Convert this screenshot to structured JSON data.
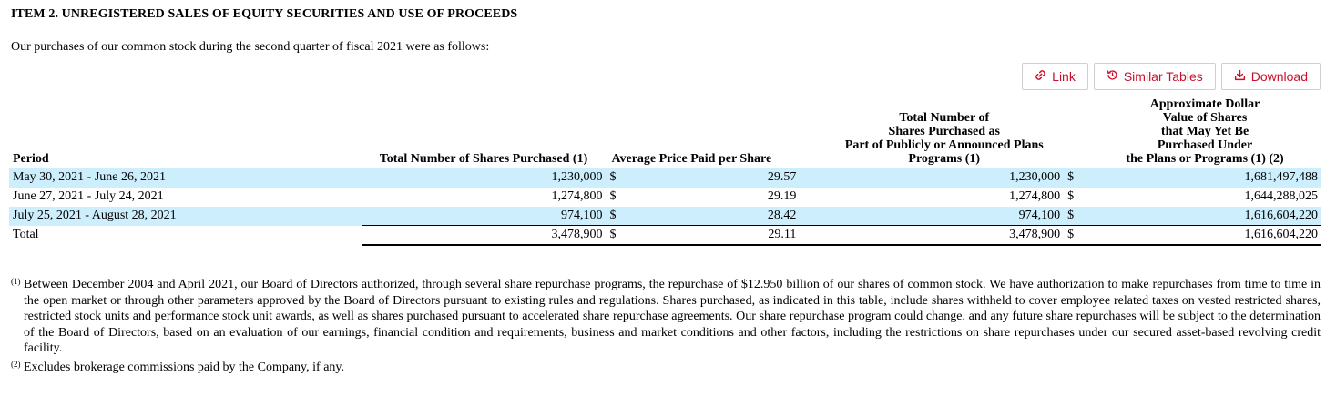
{
  "heading": "ITEM 2. UNREGISTERED SALES OF EQUITY SECURITIES AND USE OF PROCEEDS",
  "intro": "Our purchases of our common stock during the second quarter of fiscal 2021 were as follows:",
  "toolbar": {
    "link_label": "Link",
    "similar_label": "Similar Tables",
    "download_label": "Download",
    "accent_color": "#c8102e"
  },
  "table": {
    "headers": {
      "period": "Period",
      "total_shares": "Total Number of Shares Purchased (1)",
      "avg_price": "Average Price Paid per Share",
      "plans_line1": "Total Number of",
      "plans_line2": "Shares Purchased as",
      "plans_line3": "Part of Publicly or Announced Plans",
      "plans_line4": "Programs (1)",
      "approx_line1": "Approximate Dollar",
      "approx_line2": "Value of Shares",
      "approx_line3": "that May Yet Be",
      "approx_line4": "Purchased Under",
      "approx_line5": "the Plans or Programs (1) (2)"
    },
    "rows": [
      {
        "period": "May 30, 2021 - June 26, 2021",
        "shares": "1,230,000",
        "cur1": "$",
        "price": "29.57",
        "plan_shares": "1,230,000",
        "cur2": "$",
        "value": "1,681,497,488"
      },
      {
        "period": "June 27, 2021 - July 24, 2021",
        "shares": "1,274,800",
        "cur1": "$",
        "price": "29.19",
        "plan_shares": "1,274,800",
        "cur2": "$",
        "value": "1,644,288,025"
      },
      {
        "period": "July 25, 2021 - August 28, 2021",
        "shares": "974,100",
        "cur1": "$",
        "price": "28.42",
        "plan_shares": "974,100",
        "cur2": "$",
        "value": "1,616,604,220"
      },
      {
        "period": "Total",
        "shares": "3,478,900",
        "cur1": "$",
        "price": "29.11",
        "plan_shares": "3,478,900",
        "cur2": "$",
        "value": "1,616,604,220"
      }
    ],
    "highlight_color": "#cdeefc"
  },
  "footnotes": [
    {
      "marker": "(1)",
      "text": "Between December 2004 and April 2021, our Board of Directors authorized, through several share repurchase programs, the repurchase of $12.950 billion of our shares of common stock. We have authorization to make repurchases from time to time in the open market or through other parameters approved by the Board of Directors pursuant to existing rules and regulations. Shares purchased, as indicated in this table, include shares withheld to cover employee related taxes on vested restricted shares, restricted stock units and performance stock unit awards, as well as shares purchased pursuant to accelerated share repurchase agreements. Our share repurchase program could change, and any future share repurchases will be subject to the determination of the Board of Directors, based on an evaluation of our earnings, financial condition and requirements, business and market conditions and other factors, including the restrictions on share repurchases under our secured asset-based revolving credit facility."
    },
    {
      "marker": "(2)",
      "text": "Excludes brokerage commissions paid by the Company, if any."
    }
  ]
}
